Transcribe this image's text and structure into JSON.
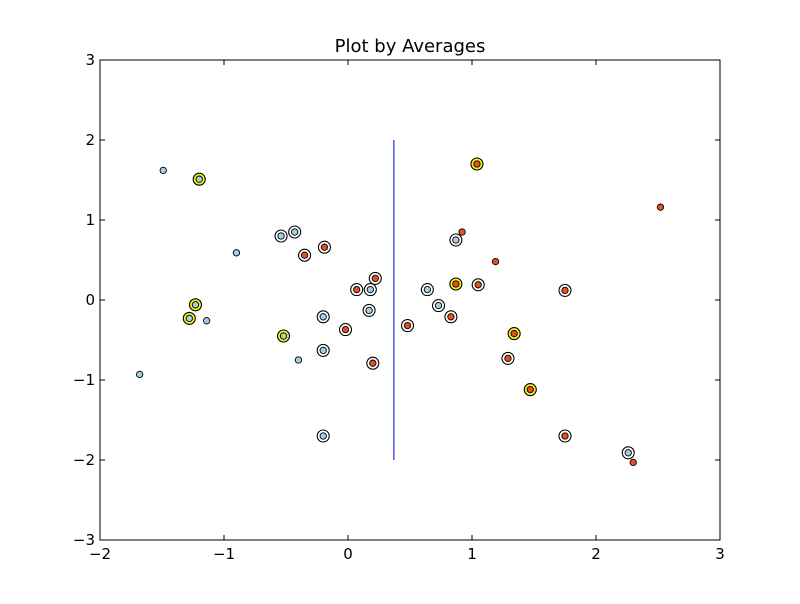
{
  "chart_data": {
    "type": "scatter",
    "title": "Plot by Averages",
    "xlabel": "",
    "ylabel": "",
    "xlim": [
      -2,
      3
    ],
    "ylim": [
      -3,
      3
    ],
    "xticks": [
      -2,
      -1,
      0,
      1,
      2,
      3
    ],
    "yticks": [
      -3,
      -2,
      -1,
      0,
      1,
      2,
      3
    ],
    "xtick_labels": [
      "−2",
      "−1",
      "0",
      "1",
      "2",
      "3"
    ],
    "ytick_labels": [
      "−3",
      "−2",
      "−1",
      "0",
      "1",
      "2",
      "3"
    ],
    "grid": false,
    "colors": {
      "light_blue": "#a6cee3",
      "orange_red": "#e3521e",
      "ring_yellow": "#f2ee1c",
      "ring_white": "#ffffff",
      "divider": "#0000ff"
    },
    "divider_line": {
      "x": 0.37,
      "y_from": -2.0,
      "y_to": 2.0
    },
    "points": [
      {
        "x": -1.49,
        "y": 1.62,
        "fill": "light_blue",
        "ring": "none"
      },
      {
        "x": -1.2,
        "y": 1.51,
        "fill": "light_blue",
        "ring": "yellow"
      },
      {
        "x": -0.9,
        "y": 0.59,
        "fill": "light_blue",
        "ring": "none"
      },
      {
        "x": -1.23,
        "y": -0.06,
        "fill": "light_blue",
        "ring": "yellow"
      },
      {
        "x": -1.28,
        "y": -0.23,
        "fill": "light_blue",
        "ring": "yellow"
      },
      {
        "x": -1.14,
        "y": -0.26,
        "fill": "light_blue",
        "ring": "none"
      },
      {
        "x": -1.68,
        "y": -0.93,
        "fill": "light_blue",
        "ring": "none"
      },
      {
        "x": -0.52,
        "y": -0.45,
        "fill": "light_blue",
        "ring": "yellow"
      },
      {
        "x": -0.4,
        "y": -0.75,
        "fill": "light_blue",
        "ring": "none"
      },
      {
        "x": -0.54,
        "y": 0.8,
        "fill": "light_blue",
        "ring": "white"
      },
      {
        "x": -0.43,
        "y": 0.85,
        "fill": "light_blue",
        "ring": "white"
      },
      {
        "x": -0.35,
        "y": 0.56,
        "fill": "orange_red",
        "ring": "white"
      },
      {
        "x": -0.19,
        "y": 0.66,
        "fill": "orange_red",
        "ring": "white"
      },
      {
        "x": -0.2,
        "y": -0.21,
        "fill": "light_blue",
        "ring": "white"
      },
      {
        "x": -0.2,
        "y": -0.63,
        "fill": "light_blue",
        "ring": "white"
      },
      {
        "x": -0.2,
        "y": -1.7,
        "fill": "light_blue",
        "ring": "white"
      },
      {
        "x": -0.02,
        "y": -0.37,
        "fill": "orange_red",
        "ring": "white"
      },
      {
        "x": 0.07,
        "y": 0.13,
        "fill": "orange_red",
        "ring": "white"
      },
      {
        "x": 0.18,
        "y": 0.13,
        "fill": "light_blue",
        "ring": "white"
      },
      {
        "x": 0.22,
        "y": 0.27,
        "fill": "orange_red",
        "ring": "white"
      },
      {
        "x": 0.17,
        "y": -0.13,
        "fill": "light_blue",
        "ring": "white"
      },
      {
        "x": 0.2,
        "y": -0.79,
        "fill": "orange_red",
        "ring": "white"
      },
      {
        "x": 0.48,
        "y": -0.32,
        "fill": "orange_red",
        "ring": "white"
      },
      {
        "x": 0.64,
        "y": 0.13,
        "fill": "light_blue",
        "ring": "white"
      },
      {
        "x": 0.73,
        "y": -0.07,
        "fill": "light_blue",
        "ring": "white"
      },
      {
        "x": 0.83,
        "y": -0.21,
        "fill": "orange_red",
        "ring": "white"
      },
      {
        "x": 0.87,
        "y": 0.75,
        "fill": "light_blue",
        "ring": "white"
      },
      {
        "x": 0.92,
        "y": 0.85,
        "fill": "orange_red",
        "ring": "none"
      },
      {
        "x": 0.87,
        "y": 0.2,
        "fill": "orange_red",
        "ring": "yellow"
      },
      {
        "x": 1.04,
        "y": 1.7,
        "fill": "orange_red",
        "ring": "yellow"
      },
      {
        "x": 1.05,
        "y": 0.19,
        "fill": "orange_red",
        "ring": "white"
      },
      {
        "x": 1.19,
        "y": 0.48,
        "fill": "orange_red",
        "ring": "none"
      },
      {
        "x": 1.29,
        "y": -0.73,
        "fill": "orange_red",
        "ring": "white"
      },
      {
        "x": 1.34,
        "y": -0.42,
        "fill": "orange_red",
        "ring": "yellow"
      },
      {
        "x": 1.47,
        "y": -1.12,
        "fill": "orange_red",
        "ring": "yellow"
      },
      {
        "x": 1.75,
        "y": -1.7,
        "fill": "orange_red",
        "ring": "white"
      },
      {
        "x": 1.75,
        "y": 0.12,
        "fill": "orange_red",
        "ring": "white"
      },
      {
        "x": 2.26,
        "y": -1.91,
        "fill": "light_blue",
        "ring": "white"
      },
      {
        "x": 2.3,
        "y": -2.03,
        "fill": "orange_red",
        "ring": "none"
      },
      {
        "x": 2.52,
        "y": 1.16,
        "fill": "orange_red",
        "ring": "none"
      }
    ]
  }
}
